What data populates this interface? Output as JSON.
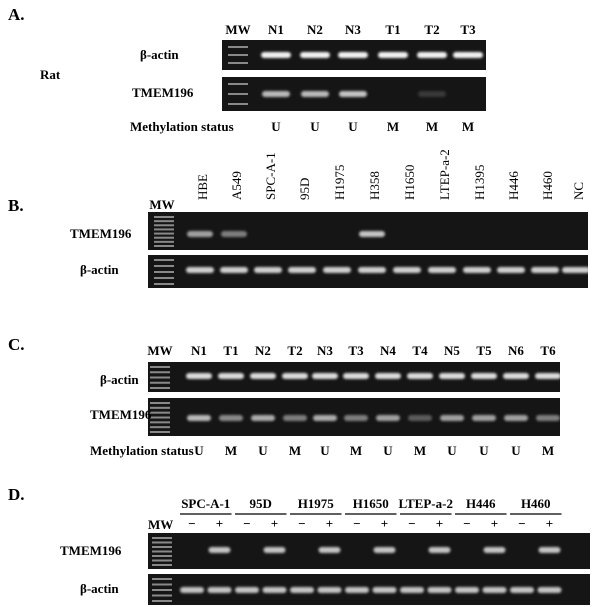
{
  "panel_a": {
    "label": "A.",
    "species": "Rat",
    "lanes": [
      "MW",
      "N1",
      "N2",
      "N3",
      "T1",
      "T2",
      "T3"
    ],
    "rows": [
      "β-actin",
      "TMEM196"
    ],
    "methylation_label": "Methylation status",
    "methylation": [
      "U",
      "U",
      "U",
      "M",
      "M",
      "M"
    ]
  },
  "panel_b": {
    "label": "B.",
    "mw": "MW",
    "lanes": [
      "HBE",
      "A549",
      "SPC-A-1",
      "95D",
      "H1975",
      "H358",
      "H1650",
      "LTEP-a-2",
      "H1395",
      "H446",
      "H460",
      "NC"
    ],
    "rows": [
      "TMEM196",
      "β-actin"
    ]
  },
  "panel_c": {
    "label": "C.",
    "lanes": [
      "MW",
      "N1",
      "T1",
      "N2",
      "T2",
      "N3",
      "T3",
      "N4",
      "T4",
      "N5",
      "T5",
      "N6",
      "T6"
    ],
    "rows": [
      "β-actin",
      "TMEM196"
    ],
    "methylation_label": "Methylation status",
    "methylation": [
      "U",
      "M",
      "U",
      "M",
      "U",
      "M",
      "U",
      "M",
      "U",
      "U",
      "U",
      "M"
    ]
  },
  "panel_d": {
    "label": "D.",
    "mw": "MW",
    "groups": [
      "SPC-A-1",
      "95D",
      "H1975",
      "H1650",
      "LTEP-a-2",
      "H446",
      "H460"
    ],
    "treatment": [
      "−",
      "+"
    ],
    "rows": [
      "TMEM196",
      "β-actin"
    ]
  }
}
